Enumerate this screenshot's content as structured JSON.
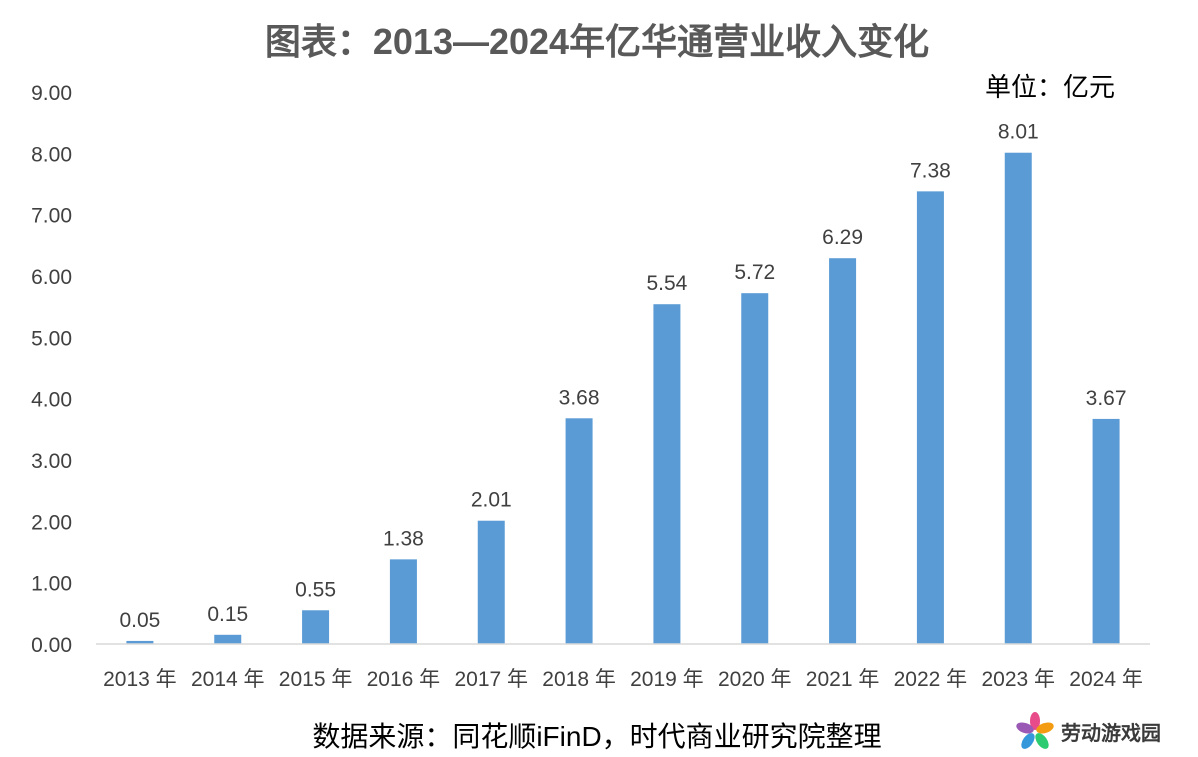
{
  "chart_data": {
    "type": "bar",
    "title": "图表：2013—2024年亿华通营业收入变化",
    "unit_label": "单位：亿元",
    "categories": [
      "2013 年",
      "2014 年",
      "2015 年",
      "2016 年",
      "2017 年",
      "2018 年",
      "2019 年",
      "2020 年",
      "2021 年",
      "2022 年",
      "2023 年",
      "2024 年"
    ],
    "values": [
      0.05,
      0.15,
      0.55,
      1.38,
      2.01,
      3.68,
      5.54,
      5.72,
      6.29,
      7.38,
      8.01,
      3.67
    ],
    "value_labels": [
      "0.05",
      "0.15",
      "0.55",
      "1.38",
      "2.01",
      "3.68",
      "5.54",
      "5.72",
      "6.29",
      "7.38",
      "8.01",
      "3.67"
    ],
    "ylim": [
      0,
      9
    ],
    "yticks": [
      "0.00",
      "1.00",
      "2.00",
      "3.00",
      "4.00",
      "5.00",
      "6.00",
      "7.00",
      "8.00",
      "9.00"
    ],
    "bar_color": "#5b9bd5",
    "grid": false,
    "legend": "none"
  },
  "source_note": "数据来源：同花顺iFinD，时代商业研究院整理",
  "watermark": {
    "text": "劳动游戏园",
    "icon": "pinwheel-logo-icon"
  }
}
